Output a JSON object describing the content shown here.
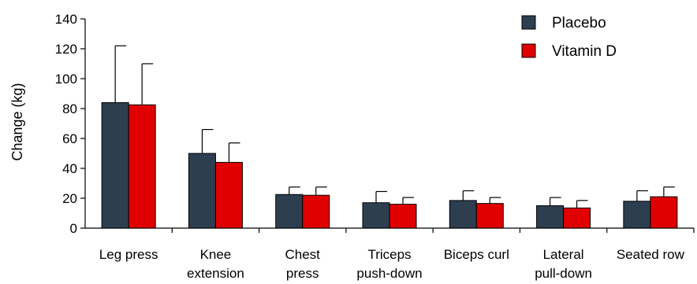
{
  "chart_data": {
    "type": "bar",
    "categories": [
      [
        "Leg press"
      ],
      [
        "Knee",
        "extension"
      ],
      [
        "Chest",
        "press"
      ],
      [
        "Triceps",
        "push-down"
      ],
      [
        "Biceps curl"
      ],
      [
        "Lateral",
        "pull-down"
      ],
      [
        "Seated row"
      ]
    ],
    "series": [
      {
        "name": "Placebo",
        "color": "#2d3e50",
        "values": [
          84,
          50,
          22.5,
          17,
          18.5,
          15,
          18
        ],
        "errors": [
          38,
          16,
          5,
          7.5,
          6.5,
          5.5,
          7
        ]
      },
      {
        "name": "Vitamin D",
        "color": "#e00000",
        "values": [
          82.5,
          44,
          22,
          16,
          16.5,
          13.5,
          21
        ],
        "errors": [
          27.5,
          13,
          5.5,
          4.5,
          4,
          5,
          6.5
        ]
      }
    ],
    "ylabel": "Change (kg)",
    "xlabel": "",
    "ylim": [
      0,
      140
    ],
    "yticks": [
      0,
      20,
      40,
      60,
      80,
      100,
      120,
      140
    ],
    "grid": false,
    "legend_position": "top-right"
  }
}
